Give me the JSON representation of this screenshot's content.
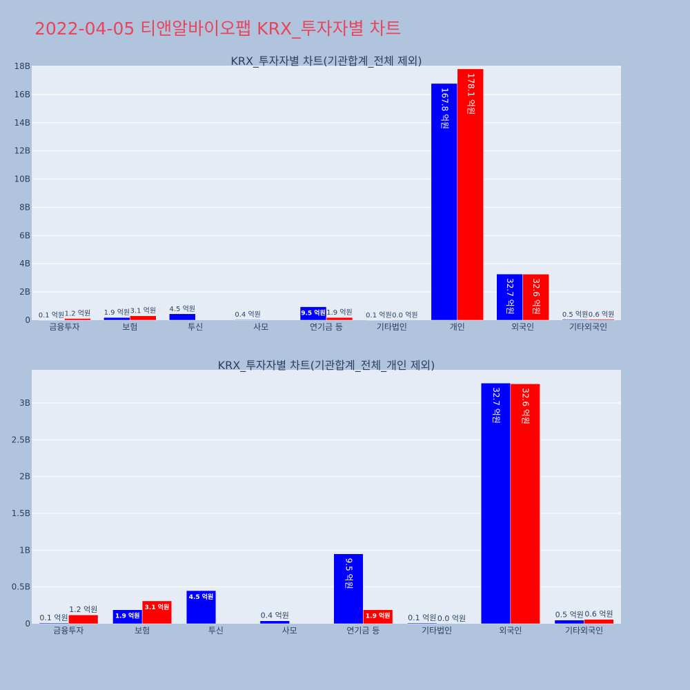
{
  "page_title": "2022-04-05 티앤알바이오팹 KRX_투자자별 차트",
  "colors": {
    "series_a": "#0000ff",
    "series_b": "#ff0000",
    "plot_bg": "#e5ecf6",
    "page_bg": "#b0c4de",
    "title": "#e8455a"
  },
  "chart_data": [
    {
      "type": "bar",
      "title": "KRX_투자자별 차트(기관합계_전체 제외)",
      "categories": [
        "금융투자",
        "보험",
        "투신",
        "사모",
        "연기금 등",
        "기타법인",
        "개인",
        "외국인",
        "기타외국인"
      ],
      "ylim": [
        0,
        18000000000
      ],
      "yticks": [
        0,
        2000000000,
        4000000000,
        6000000000,
        8000000000,
        10000000000,
        12000000000,
        14000000000,
        16000000000,
        18000000000
      ],
      "ytick_labels": [
        "0",
        "2B",
        "4B",
        "6B",
        "8B",
        "10B",
        "12B",
        "14B",
        "16B",
        "18B"
      ],
      "grid": true,
      "series": [
        {
          "color": "#0000ff",
          "values": [
            10000000,
            190000000,
            450000000,
            40000000,
            950000000,
            10000000,
            16780000000,
            3270000000,
            50000000
          ],
          "labels": [
            "0.1 억원",
            "1.9 억원",
            "4.5 억원",
            "0.4 억원",
            "9.5 억원",
            "0.1 억원",
            "167.8 억원",
            "32.7 억원",
            "0.5 억원"
          ]
        },
        {
          "color": "#ff0000",
          "values": [
            120000000,
            310000000,
            null,
            null,
            190000000,
            0,
            17810000000,
            3260000000,
            60000000
          ],
          "labels": [
            "1.2 억원",
            "3.1 억원",
            "",
            "",
            "1.9 억원",
            "0.0 억원",
            "178.1 억원",
            "32.6 억원",
            "0.6 억원"
          ]
        }
      ]
    },
    {
      "type": "bar",
      "title": "KRX_투자자별 차트(기관합계_전체_개인 제외)",
      "categories": [
        "금융투자",
        "보험",
        "투신",
        "사모",
        "연기금 등",
        "기타법인",
        "외국인",
        "기타외국인"
      ],
      "ylim": [
        0,
        3450000000
      ],
      "yticks": [
        0,
        500000000,
        1000000000,
        1500000000,
        2000000000,
        2500000000,
        3000000000
      ],
      "ytick_labels": [
        "0",
        "0.5B",
        "1B",
        "1.5B",
        "2B",
        "2.5B",
        "3B"
      ],
      "grid": true,
      "series": [
        {
          "color": "#0000ff",
          "values": [
            10000000,
            190000000,
            450000000,
            40000000,
            950000000,
            10000000,
            3270000000,
            50000000
          ],
          "labels": [
            "0.1 억원",
            "1.9 억원",
            "4.5 억원",
            "0.4 억원",
            "9.5 억원",
            "0.1 억원",
            "32.7 억원",
            "0.5 억원"
          ]
        },
        {
          "color": "#ff0000",
          "values": [
            120000000,
            310000000,
            null,
            null,
            190000000,
            0,
            3260000000,
            60000000
          ],
          "labels": [
            "1.2 억원",
            "3.1 억원",
            "",
            "",
            "1.9 억원",
            "0.0 억원",
            "32.6 억원",
            "0.6 억원"
          ]
        }
      ]
    }
  ]
}
